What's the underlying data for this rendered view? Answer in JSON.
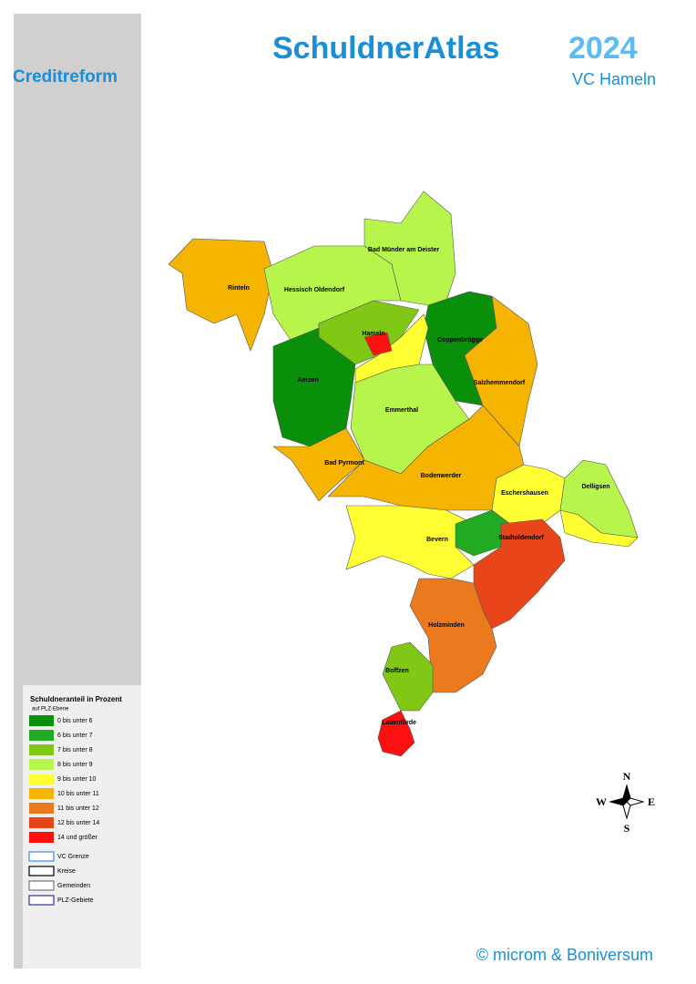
{
  "header": {
    "title": "SchuldnerAtlas",
    "year": "2024",
    "subtitle": "VC Hameln",
    "logo": "Creditreform"
  },
  "legend": {
    "title": "Schuldneranteil in Prozent",
    "subtitle": "auf PLZ-Ebene",
    "classes": [
      {
        "label": "0 bis unter 6",
        "color": "#0a8f0a"
      },
      {
        "label": "6 bis unter 7",
        "color": "#22aa22"
      },
      {
        "label": "7 bis unter 8",
        "color": "#80c815"
      },
      {
        "label": "8 bis unter 9",
        "color": "#b8f54c"
      },
      {
        "label": "9 bis unter 10",
        "color": "#ffff33"
      },
      {
        "label": "10 bis unter 11",
        "color": "#f5b400"
      },
      {
        "label": "11 bis unter 12",
        "color": "#eb7a1e"
      },
      {
        "label": "12 bis unter 14",
        "color": "#e8461a"
      },
      {
        "label": "14 und größer",
        "color": "#ff1010"
      }
    ],
    "borders": [
      {
        "label": "VC Grenze",
        "color": "#3b8fe0"
      },
      {
        "label": "Kreise",
        "color": "#000000"
      },
      {
        "label": "Gemeinden",
        "color": "#777777"
      },
      {
        "label": "PLZ-Gebiete",
        "color": "#3030a0"
      }
    ]
  },
  "places": [
    "Rinteln",
    "Hessisch Oldendorf",
    "Bad Münder am Deister",
    "Hameln",
    "Coppenbrügge",
    "Salzhemmendorf",
    "Aerzen",
    "Emmerthal",
    "Bad Pyrmont",
    "Bodenwerder",
    "Eschershausen",
    "Delligsen",
    "Bevern",
    "Stadtoldendorf",
    "Holzminden",
    "Boffzen",
    "Lauenförde"
  ],
  "compass": {
    "n": "N",
    "e": "E",
    "s": "S",
    "w": "W"
  },
  "footer": "© microm & Boniversum"
}
